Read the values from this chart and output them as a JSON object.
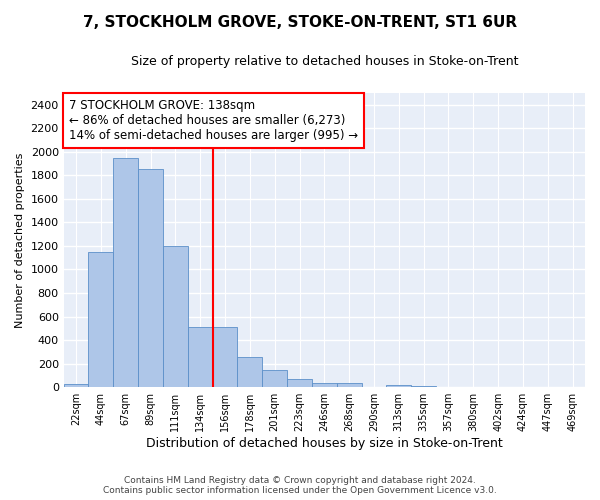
{
  "title": "7, STOCKHOLM GROVE, STOKE-ON-TRENT, ST1 6UR",
  "subtitle": "Size of property relative to detached houses in Stoke-on-Trent",
  "xlabel": "Distribution of detached houses by size in Stoke-on-Trent",
  "ylabel": "Number of detached properties",
  "categories": [
    "22sqm",
    "44sqm",
    "67sqm",
    "89sqm",
    "111sqm",
    "134sqm",
    "156sqm",
    "178sqm",
    "201sqm",
    "223sqm",
    "246sqm",
    "268sqm",
    "290sqm",
    "313sqm",
    "335sqm",
    "357sqm",
    "380sqm",
    "402sqm",
    "424sqm",
    "447sqm",
    "469sqm"
  ],
  "values": [
    30,
    1150,
    1950,
    1850,
    1200,
    510,
    510,
    260,
    150,
    70,
    35,
    35,
    5,
    15,
    10,
    3,
    3,
    2,
    2,
    2,
    2
  ],
  "bar_color": "#aec6e8",
  "bar_edge_color": "#5b8fc9",
  "vline_x_index": 5.5,
  "vline_color": "red",
  "annotation_title": "7 STOCKHOLM GROVE: 138sqm",
  "annotation_line1": "← 86% of detached houses are smaller (6,273)",
  "annotation_line2": "14% of semi-detached houses are larger (995) →",
  "annotation_box_color": "white",
  "annotation_box_edge": "red",
  "footer1": "Contains HM Land Registry data © Crown copyright and database right 2024.",
  "footer2": "Contains public sector information licensed under the Open Government Licence v3.0.",
  "ylim": [
    0,
    2500
  ],
  "yticks": [
    0,
    200,
    400,
    600,
    800,
    1000,
    1200,
    1400,
    1600,
    1800,
    2000,
    2200,
    2400
  ],
  "background_color": "#e8eef8",
  "grid_color": "white",
  "title_fontsize": 11,
  "subtitle_fontsize": 9,
  "ylabel_fontsize": 8,
  "xlabel_fontsize": 9,
  "footer_fontsize": 6.5,
  "ann_fontsize": 8.5
}
